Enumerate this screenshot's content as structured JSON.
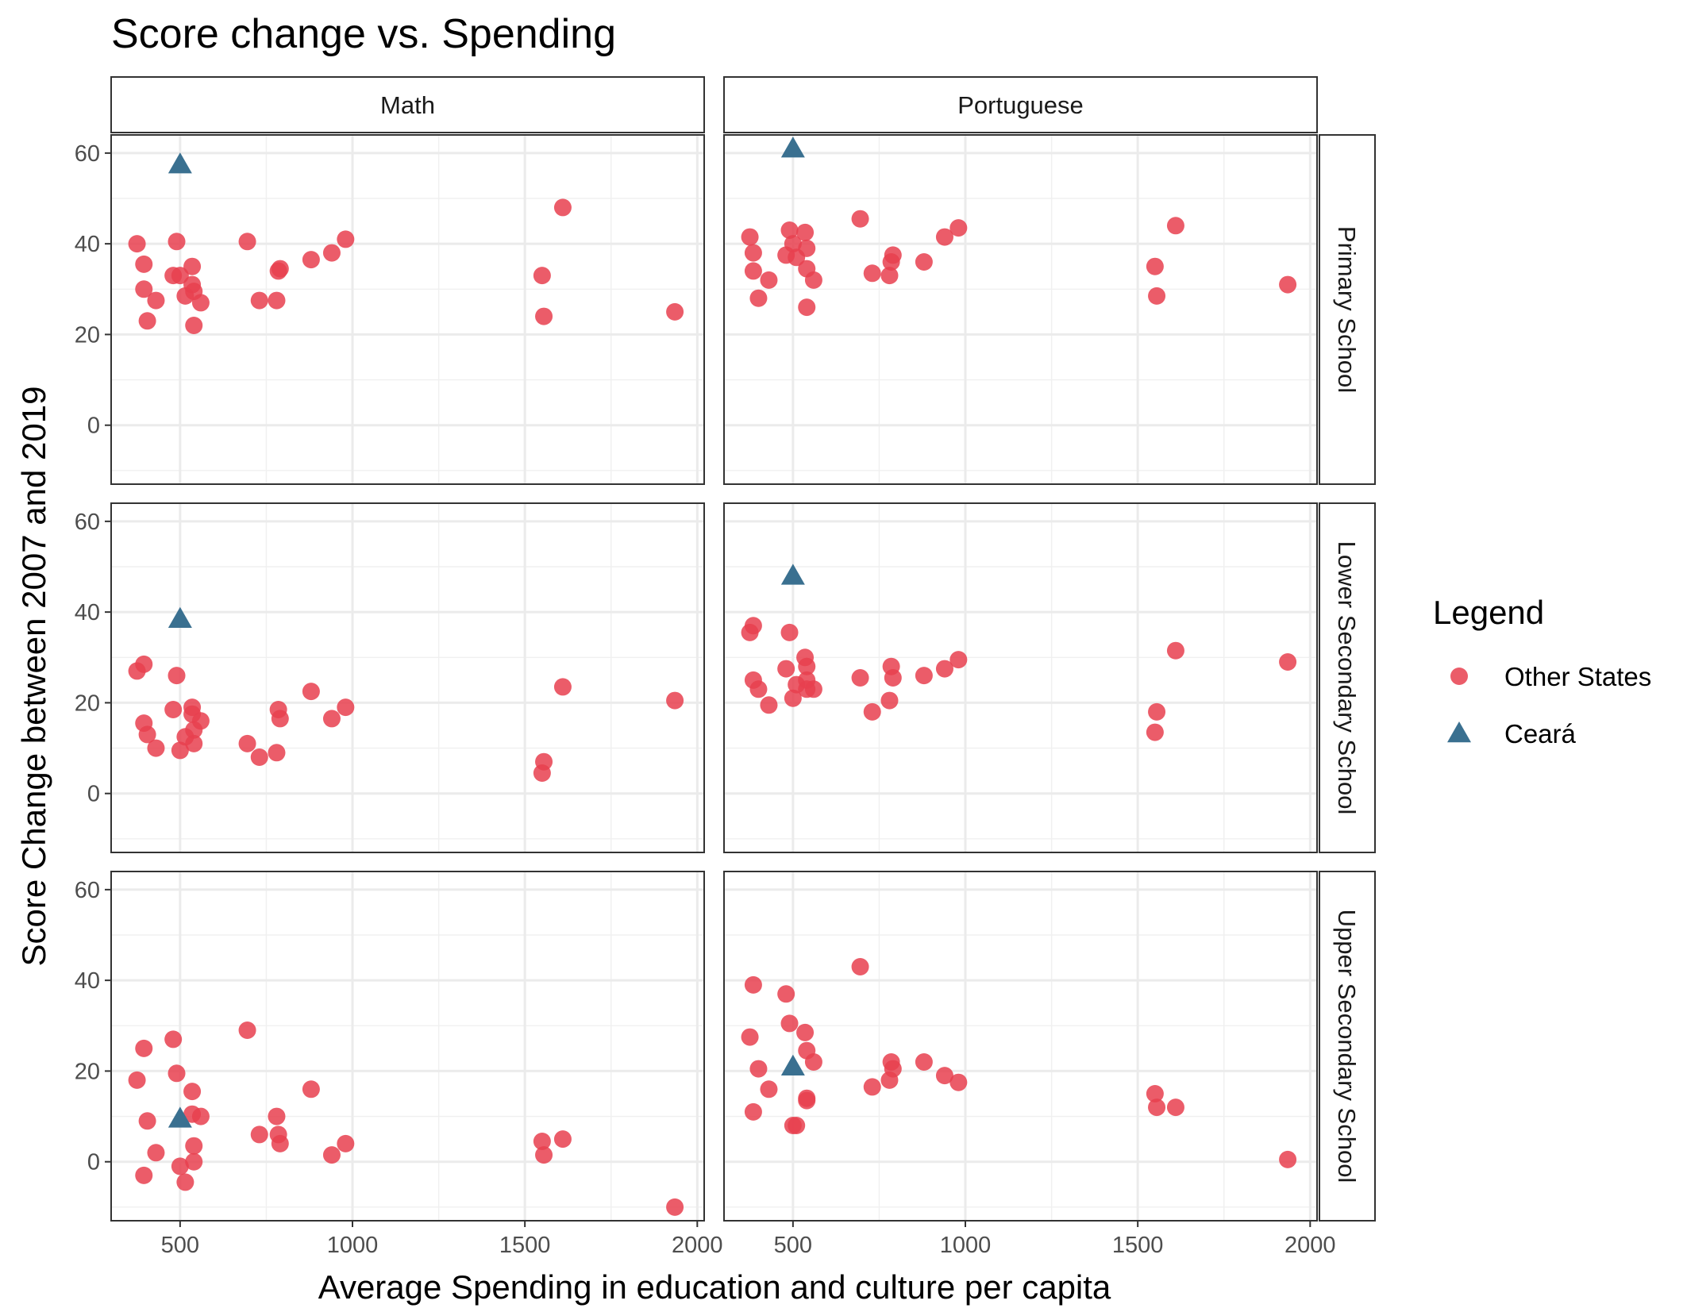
{
  "chart_data": {
    "type": "scatter",
    "title": "Score change vs. Spending",
    "xlabel": "Average Spending in education and culture per capita",
    "ylabel": "Score Change between 2007 and 2019",
    "xlim": [
      300,
      2020
    ],
    "ylim": [
      -13,
      64
    ],
    "x_ticks": [
      500,
      1000,
      1500,
      2000
    ],
    "y_ticks": [
      0,
      20,
      40,
      60
    ],
    "grid": true,
    "legend": {
      "title": "Legend",
      "position": "right",
      "entries": [
        {
          "label": "Other States",
          "shape": "circle",
          "color": "#e8404f"
        },
        {
          "label": "Ceará",
          "shape": "triangle",
          "color": "#3a7090"
        }
      ]
    },
    "facet_columns": [
      "Math",
      "Portuguese"
    ],
    "facet_rows": [
      "Primary School",
      "Lower Secondary School",
      "Upper Secondary School"
    ],
    "panels": [
      {
        "column": "Math",
        "row": "Primary School",
        "other_states": [
          [
            375,
            40
          ],
          [
            395,
            35.5
          ],
          [
            395,
            30
          ],
          [
            405,
            23
          ],
          [
            430,
            27.5
          ],
          [
            480,
            33
          ],
          [
            490,
            40.5
          ],
          [
            500,
            33
          ],
          [
            515,
            28.5
          ],
          [
            535,
            35
          ],
          [
            535,
            31
          ],
          [
            540,
            29.5
          ],
          [
            540,
            22
          ],
          [
            560,
            27
          ],
          [
            695,
            40.5
          ],
          [
            730,
            27.5
          ],
          [
            780,
            27.5
          ],
          [
            785,
            34
          ],
          [
            790,
            34.5
          ],
          [
            880,
            36.5
          ],
          [
            940,
            38
          ],
          [
            980,
            41
          ],
          [
            1550,
            33
          ],
          [
            1555,
            24
          ],
          [
            1610,
            48
          ],
          [
            1935,
            25
          ]
        ],
        "ceara": [
          500,
          57.5
        ]
      },
      {
        "column": "Portuguese",
        "row": "Primary School",
        "other_states": [
          [
            375,
            41.5
          ],
          [
            385,
            38
          ],
          [
            385,
            34
          ],
          [
            400,
            28
          ],
          [
            430,
            32
          ],
          [
            480,
            37.5
          ],
          [
            490,
            43
          ],
          [
            500,
            40
          ],
          [
            510,
            37
          ],
          [
            535,
            42.5
          ],
          [
            540,
            39
          ],
          [
            540,
            34.5
          ],
          [
            540,
            26
          ],
          [
            560,
            32
          ],
          [
            695,
            45.5
          ],
          [
            730,
            33.5
          ],
          [
            780,
            33
          ],
          [
            785,
            36
          ],
          [
            790,
            37.5
          ],
          [
            880,
            36
          ],
          [
            940,
            41.5
          ],
          [
            980,
            43.5
          ],
          [
            1550,
            35
          ],
          [
            1555,
            28.5
          ],
          [
            1610,
            44
          ],
          [
            1935,
            31
          ]
        ],
        "ceara": [
          500,
          61
        ]
      },
      {
        "column": "Math",
        "row": "Lower Secondary School",
        "other_states": [
          [
            375,
            27
          ],
          [
            395,
            28.5
          ],
          [
            395,
            15.5
          ],
          [
            405,
            13
          ],
          [
            430,
            10
          ],
          [
            480,
            18.5
          ],
          [
            490,
            26
          ],
          [
            500,
            9.5
          ],
          [
            515,
            12.5
          ],
          [
            535,
            19
          ],
          [
            535,
            17.5
          ],
          [
            540,
            14
          ],
          [
            540,
            11
          ],
          [
            560,
            16
          ],
          [
            695,
            11
          ],
          [
            730,
            8
          ],
          [
            780,
            9
          ],
          [
            785,
            18.5
          ],
          [
            790,
            16.5
          ],
          [
            880,
            22.5
          ],
          [
            940,
            16.5
          ],
          [
            980,
            19
          ],
          [
            1550,
            4.5
          ],
          [
            1555,
            7
          ],
          [
            1610,
            23.5
          ],
          [
            1935,
            20.5
          ]
        ],
        "ceara": [
          500,
          38.5
        ]
      },
      {
        "column": "Portuguese",
        "row": "Lower Secondary School",
        "other_states": [
          [
            375,
            35.5
          ],
          [
            385,
            37
          ],
          [
            385,
            25
          ],
          [
            400,
            23
          ],
          [
            430,
            19.5
          ],
          [
            480,
            27.5
          ],
          [
            490,
            35.5
          ],
          [
            500,
            21
          ],
          [
            510,
            24
          ],
          [
            535,
            30
          ],
          [
            540,
            28
          ],
          [
            540,
            25
          ],
          [
            540,
            23
          ],
          [
            560,
            23
          ],
          [
            695,
            25.5
          ],
          [
            730,
            18
          ],
          [
            780,
            20.5
          ],
          [
            785,
            28
          ],
          [
            790,
            25.5
          ],
          [
            880,
            26
          ],
          [
            940,
            27.5
          ],
          [
            980,
            29.5
          ],
          [
            1550,
            13.5
          ],
          [
            1555,
            18
          ],
          [
            1610,
            31.5
          ],
          [
            1935,
            29
          ]
        ],
        "ceara": [
          500,
          48
        ]
      },
      {
        "column": "Math",
        "row": "Upper Secondary School",
        "other_states": [
          [
            375,
            18
          ],
          [
            395,
            25
          ],
          [
            395,
            -3
          ],
          [
            405,
            9
          ],
          [
            430,
            2
          ],
          [
            480,
            27
          ],
          [
            490,
            19.5
          ],
          [
            500,
            -1
          ],
          [
            515,
            -4.5
          ],
          [
            535,
            15.5
          ],
          [
            535,
            10.5
          ],
          [
            540,
            3.5
          ],
          [
            540,
            0
          ],
          [
            560,
            10
          ],
          [
            695,
            29
          ],
          [
            730,
            6
          ],
          [
            780,
            10
          ],
          [
            785,
            6
          ],
          [
            790,
            4
          ],
          [
            880,
            16
          ],
          [
            940,
            1.5
          ],
          [
            980,
            4
          ],
          [
            1550,
            4.5
          ],
          [
            1555,
            1.5
          ],
          [
            1610,
            5
          ],
          [
            1935,
            -10
          ]
        ],
        "ceara": [
          500,
          9.5
        ]
      },
      {
        "column": "Portuguese",
        "row": "Upper Secondary School",
        "other_states": [
          [
            375,
            27.5
          ],
          [
            385,
            39
          ],
          [
            385,
            11
          ],
          [
            400,
            20.5
          ],
          [
            430,
            16
          ],
          [
            480,
            37
          ],
          [
            490,
            30.5
          ],
          [
            500,
            8
          ],
          [
            510,
            8
          ],
          [
            535,
            28.5
          ],
          [
            540,
            24.5
          ],
          [
            540,
            14
          ],
          [
            540,
            13.5
          ],
          [
            560,
            22
          ],
          [
            695,
            43
          ],
          [
            730,
            16.5
          ],
          [
            780,
            18
          ],
          [
            785,
            22
          ],
          [
            790,
            20.5
          ],
          [
            880,
            22
          ],
          [
            940,
            19
          ],
          [
            980,
            17.5
          ],
          [
            1550,
            15
          ],
          [
            1555,
            12
          ],
          [
            1610,
            12
          ],
          [
            1935,
            0.5
          ]
        ],
        "ceara": [
          500,
          21
        ]
      }
    ]
  }
}
